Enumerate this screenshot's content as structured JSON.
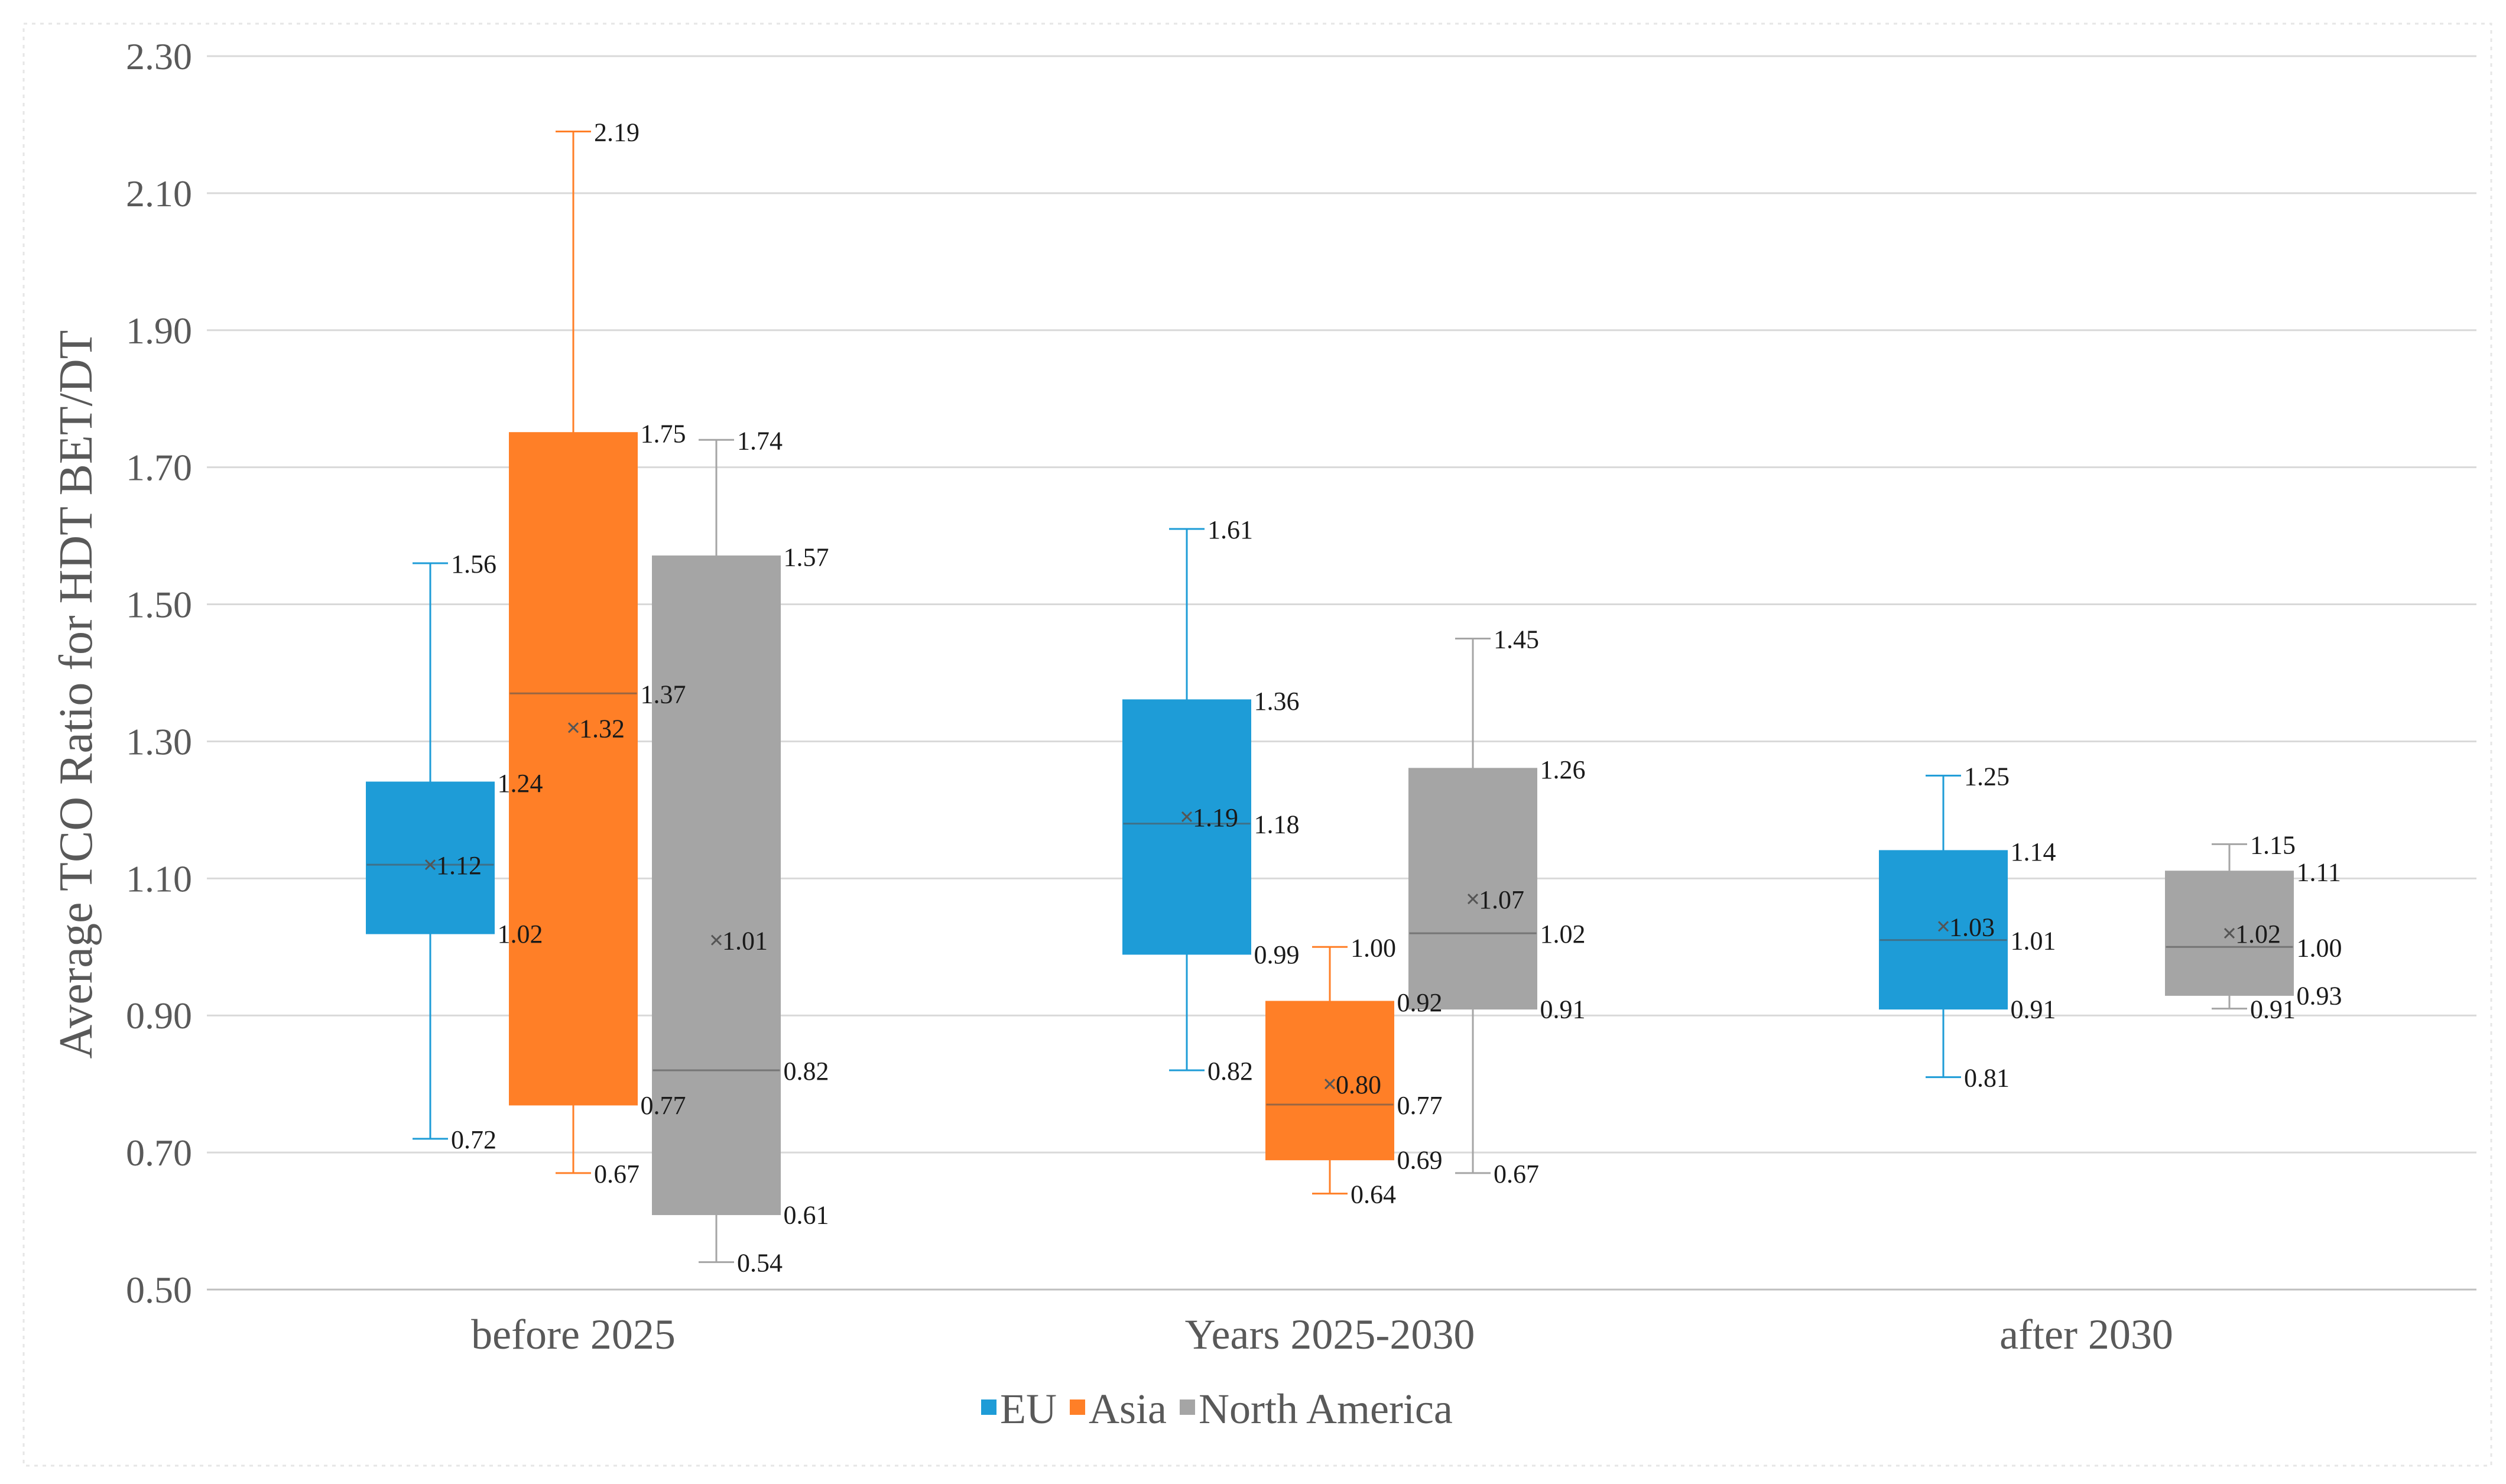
{
  "chart_data": {
    "type": "box",
    "title": "",
    "ylabel": "Average TCO Ratio for HDT BET/DT",
    "xlabel": "",
    "ylim": [
      0.5,
      2.3
    ],
    "yticks": [
      "0.50",
      "0.70",
      "0.90",
      "1.10",
      "1.30",
      "1.50",
      "1.70",
      "1.90",
      "2.10",
      "2.30"
    ],
    "ytick_values": [
      0.5,
      0.7,
      0.9,
      1.1,
      1.3,
      1.5,
      1.7,
      1.9,
      2.1,
      2.3
    ],
    "grid": true,
    "legend_position": "bottom",
    "categories": [
      "before 2025",
      "Years 2025-2030",
      "after 2030"
    ],
    "series": [
      {
        "name": "EU",
        "color": "#1E9CD7",
        "boxes": [
          {
            "category": "before 2025",
            "min": 0.72,
            "q1": 1.02,
            "median": 1.12,
            "q3": 1.24,
            "max": 1.56,
            "mean": 1.12,
            "labels": {
              "min": "0.72",
              "q1": "1.02",
              "median": "",
              "q3": "1.24",
              "max": "1.56",
              "mean": "1.12"
            }
          },
          {
            "category": "Years 2025-2030",
            "min": 0.82,
            "q1": 0.99,
            "median": 1.18,
            "q3": 1.36,
            "max": 1.61,
            "mean": 1.19,
            "labels": {
              "min": "0.82",
              "q1": "0.99",
              "median": "1.18",
              "q3": "1.36",
              "max": "1.61",
              "mean": "1.19"
            }
          },
          {
            "category": "after 2030",
            "min": 0.81,
            "q1": 0.91,
            "median": 1.01,
            "q3": 1.14,
            "max": 1.25,
            "mean": 1.03,
            "labels": {
              "min": "0.81",
              "q1": "0.91",
              "median": "1.01",
              "q3": "1.14",
              "max": "1.25",
              "mean": "1.03"
            }
          }
        ]
      },
      {
        "name": "Asia",
        "color": "#FF7F27",
        "boxes": [
          {
            "category": "before 2025",
            "min": 0.67,
            "q1": 0.77,
            "median": 1.37,
            "q3": 1.75,
            "max": 2.19,
            "mean": 1.32,
            "labels": {
              "min": "0.67",
              "q1": "0.77",
              "median": "1.37",
              "q3": "1.75",
              "max": "2.19",
              "mean": "1.32"
            }
          },
          {
            "category": "Years 2025-2030",
            "min": 0.64,
            "q1": 0.69,
            "median": 0.77,
            "q3": 0.92,
            "max": 1.0,
            "mean": 0.8,
            "labels": {
              "min": "0.64",
              "q1": "0.69",
              "median": "0.77",
              "q3": "0.92",
              "max": "1.00",
              "mean": "0.80"
            }
          }
        ]
      },
      {
        "name": "North America",
        "color": "#A5A5A5",
        "boxes": [
          {
            "category": "before 2025",
            "min": 0.54,
            "q1": 0.61,
            "median": 0.82,
            "q3": 1.57,
            "max": 1.74,
            "mean": 1.01,
            "labels": {
              "min": "0.54",
              "q1": "0.61",
              "median": "0.82",
              "q3": "1.57",
              "max": "1.74",
              "mean": "1.01"
            }
          },
          {
            "category": "Years 2025-2030",
            "min": 0.67,
            "q1": 0.91,
            "median": 1.02,
            "q3": 1.26,
            "max": 1.45,
            "mean": 1.07,
            "labels": {
              "min": "0.67",
              "q1": "0.91",
              "median": "1.02",
              "q3": "1.26",
              "max": "1.45",
              "mean": "1.07"
            }
          },
          {
            "category": "after 2030",
            "min": 0.91,
            "q1": 0.93,
            "median": 1.0,
            "q3": 1.11,
            "max": 1.15,
            "mean": 1.02,
            "labels": {
              "min": "0.91",
              "q1": "0.93",
              "median": "1.00",
              "q3": "1.11",
              "max": "1.15",
              "mean": "1.02"
            }
          }
        ]
      }
    ]
  }
}
